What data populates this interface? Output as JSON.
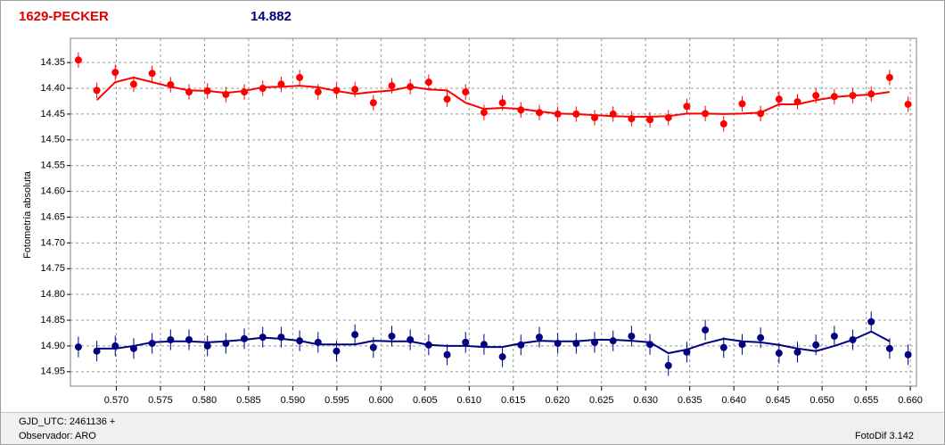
{
  "chart_data": {
    "type": "scatter",
    "title": "1629-PECKER",
    "subtitle": "14.882",
    "ylabel": "Fotometría absoluta",
    "xlim": [
      0.5648,
      0.6607
    ],
    "ylim": [
      14.978,
      14.303
    ],
    "inverted_y": true,
    "grid": true,
    "xticks": [
      {
        "value": 0.57,
        "label": "0.570"
      },
      {
        "value": 0.575,
        "label": "0.575"
      },
      {
        "value": 0.58,
        "label": "0.580"
      },
      {
        "value": 0.585,
        "label": "0.585"
      },
      {
        "value": 0.59,
        "label": "0.590"
      },
      {
        "value": 0.595,
        "label": "0.595"
      },
      {
        "value": 0.6,
        "label": "0.600"
      },
      {
        "value": 0.605,
        "label": "0.605"
      },
      {
        "value": 0.61,
        "label": "0.610"
      },
      {
        "value": 0.615,
        "label": "0.615"
      },
      {
        "value": 0.62,
        "label": "0.620"
      },
      {
        "value": 0.625,
        "label": "0.625"
      },
      {
        "value": 0.63,
        "label": "0.630"
      },
      {
        "value": 0.635,
        "label": "0.635"
      },
      {
        "value": 0.64,
        "label": "0.640"
      },
      {
        "value": 0.645,
        "label": "0.645"
      },
      {
        "value": 0.65,
        "label": "0.650"
      },
      {
        "value": 0.655,
        "label": "0.655"
      },
      {
        "value": 0.66,
        "label": "0.660"
      }
    ],
    "yticks": [
      14.35,
      {
        "value": 14.4,
        "label": "14.40"
      },
      14.45,
      {
        "value": 14.5,
        "label": "14.50"
      },
      14.55,
      {
        "value": 14.6,
        "label": "14.60"
      },
      14.65,
      {
        "value": 14.7,
        "label": "14.70"
      },
      14.75,
      {
        "value": 14.8,
        "label": "14.80"
      },
      14.85,
      {
        "value": 14.9,
        "label": "14.90"
      },
      14.95
    ],
    "x": [
      0.5657,
      0.56779,
      0.56988,
      0.57197,
      0.57406,
      0.57615,
      0.57824,
      0.58033,
      0.58242,
      0.58451,
      0.5866,
      0.58869,
      0.59078,
      0.59287,
      0.59496,
      0.59705,
      0.59914,
      0.60123,
      0.60332,
      0.60541,
      0.6075,
      0.60959,
      0.61168,
      0.61377,
      0.61586,
      0.61795,
      0.62004,
      0.62213,
      0.62422,
      0.62631,
      0.6284,
      0.63049,
      0.63258,
      0.63467,
      0.63676,
      0.63885,
      0.64094,
      0.64303,
      0.64512,
      0.64721,
      0.6493,
      0.65139,
      0.65348,
      0.65557,
      0.65766,
      0.65975
    ],
    "series": [
      {
        "color": "#ff0000",
        "error": 0.015,
        "values": [
          14.345,
          14.404,
          14.369,
          14.392,
          14.371,
          14.393,
          14.407,
          14.405,
          14.412,
          14.407,
          14.4,
          14.392,
          14.379,
          14.407,
          14.404,
          14.402,
          14.428,
          14.395,
          14.397,
          14.388,
          14.421,
          14.407,
          14.447,
          14.428,
          14.442,
          14.447,
          14.45,
          14.45,
          14.457,
          14.45,
          14.459,
          14.461,
          14.457,
          14.435,
          14.449,
          14.469,
          14.43,
          14.449,
          14.421,
          14.426,
          14.414,
          14.416,
          14.414,
          14.411,
          14.379,
          14.431
        ],
        "fit": [
          null,
          14.423,
          14.388,
          14.379,
          14.388,
          14.397,
          14.404,
          14.405,
          14.409,
          14.405,
          14.398,
          14.397,
          14.395,
          14.398,
          14.405,
          14.411,
          14.407,
          14.404,
          14.397,
          14.402,
          14.404,
          14.428,
          14.44,
          14.438,
          14.44,
          14.445,
          14.449,
          14.45,
          14.452,
          14.454,
          14.455,
          14.455,
          14.454,
          14.449,
          14.449,
          14.45,
          14.449,
          14.447,
          14.431,
          14.431,
          14.423,
          14.417,
          14.414,
          14.412,
          14.407,
          null
        ]
      },
      {
        "color": "#000080",
        "error": 0.02,
        "values": [
          14.902,
          14.91,
          14.9,
          14.905,
          14.895,
          14.888,
          14.888,
          14.9,
          14.895,
          14.886,
          14.883,
          14.883,
          14.89,
          14.893,
          14.91,
          14.878,
          14.903,
          14.881,
          14.888,
          14.898,
          14.917,
          14.893,
          14.897,
          14.921,
          14.898,
          14.883,
          14.895,
          14.895,
          14.893,
          14.89,
          14.881,
          14.897,
          14.938,
          14.912,
          14.869,
          14.903,
          14.897,
          14.884,
          14.914,
          14.912,
          14.898,
          14.881,
          14.888,
          14.853,
          14.905,
          14.917
        ],
        "fit": [
          null,
          14.905,
          14.905,
          14.9,
          14.893,
          14.891,
          14.891,
          14.893,
          14.891,
          14.888,
          14.884,
          14.886,
          14.89,
          14.897,
          14.897,
          14.897,
          14.89,
          14.891,
          14.891,
          14.898,
          14.9,
          14.9,
          14.902,
          14.902,
          14.895,
          14.89,
          14.891,
          14.891,
          14.888,
          14.888,
          14.89,
          14.893,
          14.914,
          14.907,
          14.895,
          14.886,
          14.891,
          14.893,
          14.898,
          14.905,
          14.91,
          14.9,
          14.888,
          14.872,
          14.891,
          null
        ]
      }
    ]
  },
  "footer": {
    "gjd": "GJD_UTC: 2461136 +",
    "observer": "Observador: ARO",
    "version": "FotoDif 3.142"
  }
}
